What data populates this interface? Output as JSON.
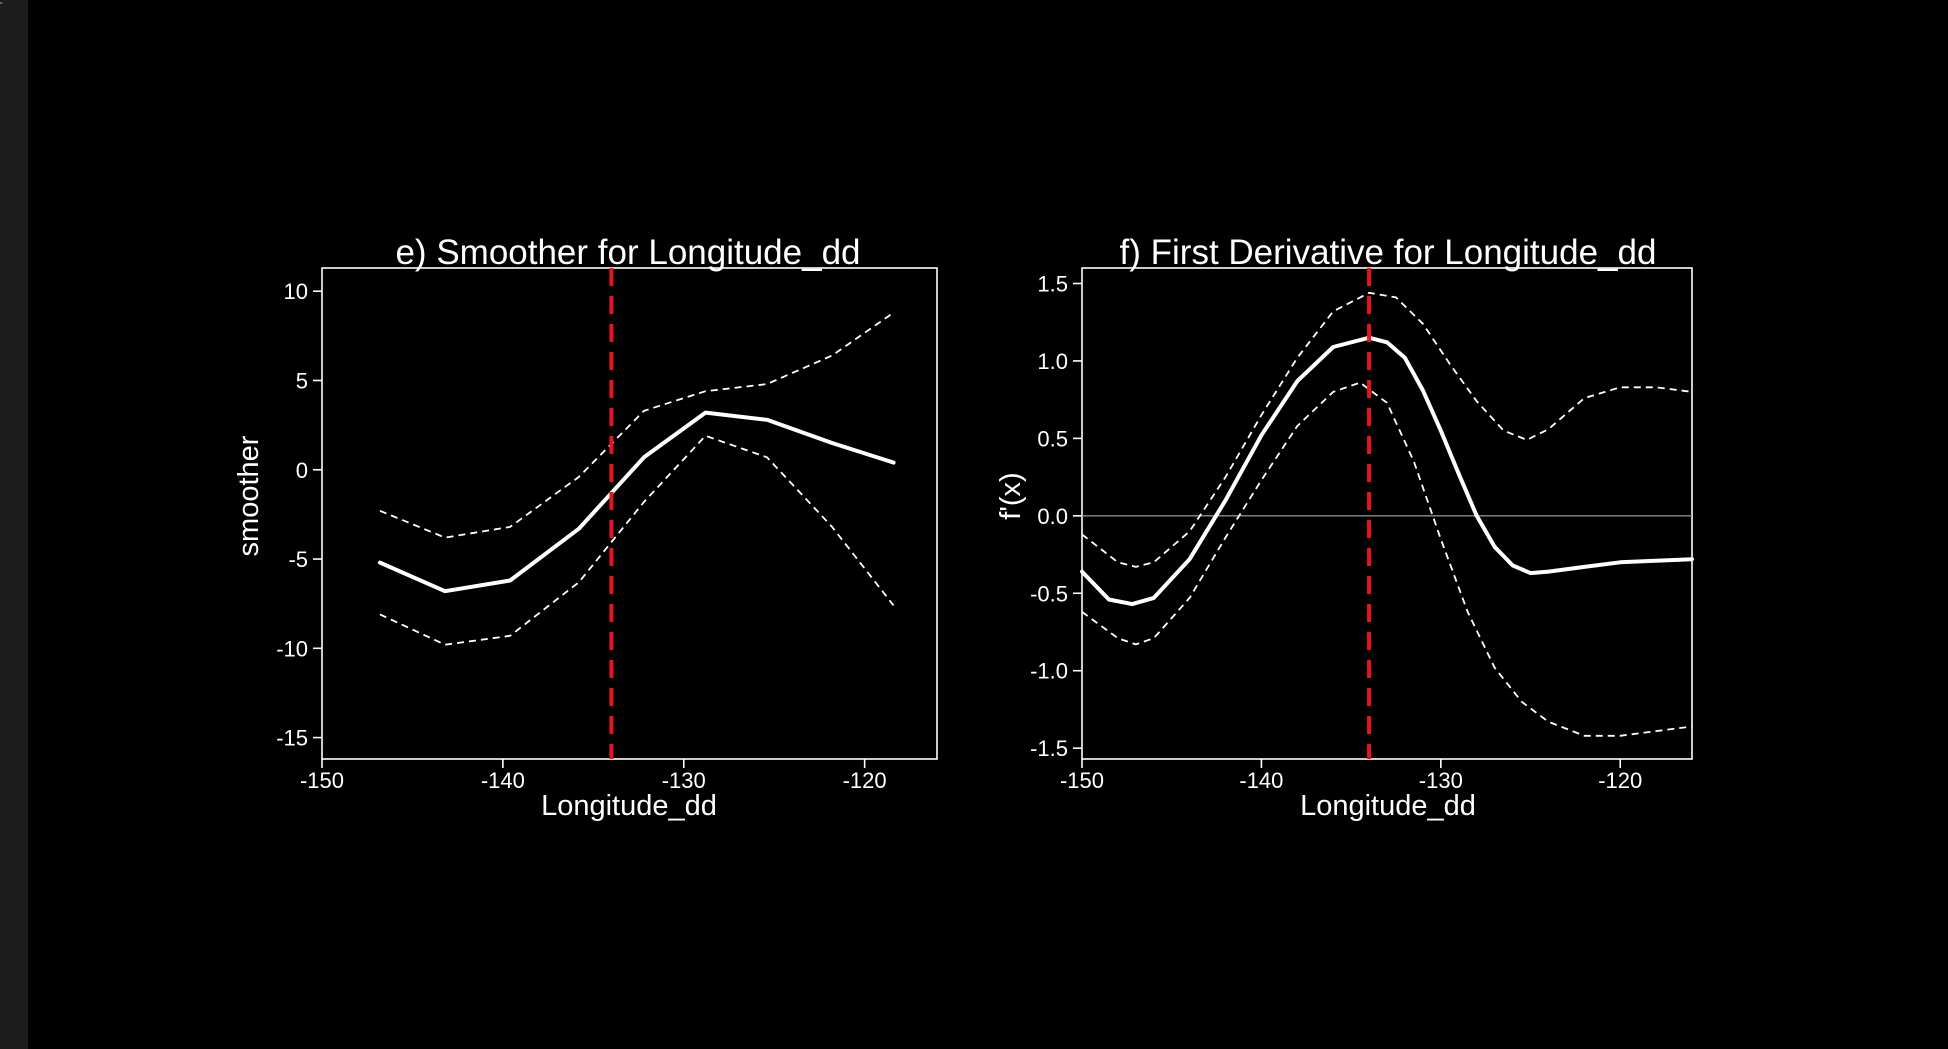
{
  "colors": {
    "background": "#000000",
    "side_strip": "#1c1c1c",
    "foreground": "#ffffff",
    "cutoff_line": "#e8141c",
    "zero_line": "#8c8c8c"
  },
  "chart_data": [
    {
      "type": "line",
      "title": "e) Smoother for Longitude_dd",
      "xlabel": "Longitude_dd",
      "ylabel": "smoother",
      "xlim": [
        -150,
        -116
      ],
      "ylim": [
        -16.2,
        11.3
      ],
      "xticks": [
        -150,
        -140,
        -130,
        -120
      ],
      "xtick_labels": [
        "-150",
        "-140",
        "-130",
        "-120"
      ],
      "yticks": [
        -15,
        -10,
        -5,
        0,
        5,
        10
      ],
      "ytick_labels": [
        "-15",
        "-10",
        "-5",
        "0",
        "5",
        "10"
      ],
      "vline": -134,
      "zero_line": false,
      "series": [
        {
          "role": "upper",
          "style": "dashed",
          "x": [
            -146.8,
            -143.2,
            -139.6,
            -135.8,
            -132.2,
            -128.8,
            -125.4,
            -121.8,
            -118.4
          ],
          "y": [
            -2.3,
            -3.8,
            -3.2,
            -0.4,
            3.3,
            4.4,
            4.8,
            6.4,
            8.8
          ]
        },
        {
          "role": "estimate",
          "style": "solid",
          "x": [
            -146.8,
            -143.2,
            -139.6,
            -135.8,
            -132.2,
            -128.8,
            -125.4,
            -121.8,
            -118.4
          ],
          "y": [
            -5.2,
            -6.8,
            -6.2,
            -3.3,
            0.7,
            3.2,
            2.8,
            1.5,
            0.4
          ]
        },
        {
          "role": "lower",
          "style": "dashed",
          "x": [
            -146.8,
            -143.2,
            -139.6,
            -135.8,
            -132.2,
            -128.8,
            -125.4,
            -121.8,
            -118.4
          ],
          "y": [
            -8.1,
            -9.8,
            -9.3,
            -6.3,
            -1.8,
            1.9,
            0.7,
            -3.2,
            -7.6
          ]
        }
      ]
    },
    {
      "type": "line",
      "title": "f) First Derivative for Longitude_dd",
      "xlabel": "Longitude_dd",
      "ylabel": "f'(x)",
      "xlim": [
        -150,
        -116
      ],
      "ylim": [
        -1.57,
        1.6
      ],
      "xticks": [
        -150,
        -140,
        -130,
        -120
      ],
      "xtick_labels": [
        "-150",
        "-140",
        "-130",
        "-120"
      ],
      "yticks": [
        -1.5,
        -1.0,
        -0.5,
        0.0,
        0.5,
        1.0,
        1.5
      ],
      "ytick_labels": [
        "-1.5",
        "-1.0",
        "-0.5",
        "0.0",
        "0.5",
        "1.0",
        "1.5"
      ],
      "vline": -134,
      "zero_line": true,
      "series": [
        {
          "role": "upper",
          "style": "dashed",
          "x": [
            -150,
            -148,
            -147,
            -146,
            -144,
            -142,
            -140,
            -138,
            -136,
            -134,
            -132.5,
            -131,
            -129.5,
            -128,
            -126.5,
            -125.2,
            -124,
            -122,
            -120,
            -118,
            -116
          ],
          "y": [
            -0.12,
            -0.3,
            -0.33,
            -0.3,
            -0.1,
            0.25,
            0.65,
            1.02,
            1.32,
            1.44,
            1.41,
            1.24,
            0.98,
            0.74,
            0.55,
            0.49,
            0.56,
            0.76,
            0.83,
            0.83,
            0.8
          ]
        },
        {
          "role": "estimate",
          "style": "solid",
          "x": [
            -150,
            -148.5,
            -147.2,
            -146,
            -144,
            -142,
            -140,
            -138,
            -136,
            -134,
            -133,
            -132,
            -131,
            -130,
            -129,
            -128,
            -127,
            -126,
            -125,
            -124,
            -122,
            -120,
            -118,
            -116
          ],
          "y": [
            -0.36,
            -0.54,
            -0.57,
            -0.53,
            -0.28,
            0.1,
            0.52,
            0.87,
            1.09,
            1.15,
            1.12,
            1.02,
            0.81,
            0.55,
            0.27,
            0.0,
            -0.2,
            -0.32,
            -0.37,
            -0.36,
            -0.33,
            -0.3,
            -0.29,
            -0.28
          ]
        },
        {
          "role": "lower",
          "style": "dashed",
          "x": [
            -150,
            -148,
            -147,
            -146,
            -144,
            -142,
            -140,
            -138,
            -136,
            -134.5,
            -133,
            -131.5,
            -130,
            -128.5,
            -127,
            -125.5,
            -124,
            -122,
            -120,
            -118,
            -116
          ],
          "y": [
            -0.62,
            -0.79,
            -0.83,
            -0.79,
            -0.53,
            -0.14,
            0.23,
            0.58,
            0.8,
            0.86,
            0.73,
            0.35,
            -0.15,
            -0.62,
            -0.98,
            -1.2,
            -1.33,
            -1.42,
            -1.42,
            -1.39,
            -1.36
          ]
        }
      ]
    }
  ]
}
